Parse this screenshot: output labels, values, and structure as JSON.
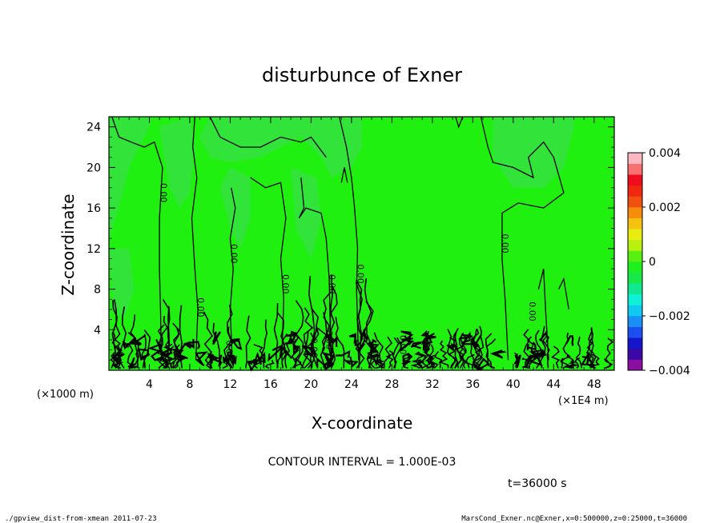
{
  "chart_data": {
    "type": "heatmap",
    "title": "disturbunce of Exner",
    "xlabel": "X-coordinate",
    "ylabel": "Z-coordinate",
    "x_unit_left": "(×1000 m)",
    "x_unit_right": "(×1E4 m)",
    "x_ticks": [
      "4",
      "8",
      "12",
      "16",
      "20",
      "24",
      "28",
      "32",
      "36",
      "40",
      "44",
      "48"
    ],
    "x_tick_values": [
      4,
      8,
      12,
      16,
      20,
      24,
      28,
      32,
      36,
      40,
      44,
      48
    ],
    "y_ticks": [
      "4",
      "8",
      "12",
      "16",
      "20",
      "24"
    ],
    "y_tick_values": [
      4,
      8,
      12,
      16,
      20,
      24
    ],
    "xlim": [
      0,
      50
    ],
    "ylim": [
      0,
      25
    ],
    "contour_interval_text": "CONTOUR INTERVAL = 1.000E-03",
    "time_text": "t=36000 s",
    "contour_labels": [
      {
        "x": 5.1,
        "z": 17.5,
        "text": "0.00"
      },
      {
        "x": 12.1,
        "z": 11.5,
        "text": "0.00"
      },
      {
        "x": 17.2,
        "z": 8.5,
        "text": "0.00"
      },
      {
        "x": 8.8,
        "z": 6.2,
        "text": "0.00"
      },
      {
        "x": 21.8,
        "z": 8.5,
        "text": "0.00"
      },
      {
        "x": 24.6,
        "z": 9.5,
        "text": "0.00"
      },
      {
        "x": 38.9,
        "z": 12.5,
        "text": "0.00"
      },
      {
        "x": 41.6,
        "z": 5.8,
        "text": "0.00"
      },
      {
        "x": 11.6,
        "z": 2.0,
        "text": "0.00"
      },
      {
        "x": 21.5,
        "z": 3.0,
        "text": "0.00"
      },
      {
        "x": 20.0,
        "z": 2.2,
        "text": "0.00"
      },
      {
        "x": 28.8,
        "z": 2.5,
        "text": "0.00"
      }
    ],
    "colorbar": {
      "labels": [
        "0.004",
        "0.002",
        "0",
        "−0.002",
        "−0.004"
      ],
      "label_values": [
        0.004,
        0.002,
        0,
        -0.002,
        -0.004
      ],
      "range": [
        -0.004,
        0.004
      ],
      "colors": [
        "#8a0fa0",
        "#3b08a8",
        "#1515cc",
        "#1c4ff0",
        "#1a8ff5",
        "#10c8f0",
        "#0ff0d8",
        "#0fe890",
        "#19e84a",
        "#1ef01e",
        "#58f010",
        "#b8f010",
        "#e8ec10",
        "#f5c010",
        "#f58c0a",
        "#f05010",
        "#f02810",
        "#f00c1c",
        "#f87070",
        "#fcb8c0"
      ]
    },
    "field_colors": {
      "main": "#20f010",
      "lower": "#32e43a"
    }
  },
  "footer": {
    "left": "./gpview_dist-from-xmean  2011-07-23",
    "right": "MarsCond_Exner.nc@Exner,x=0:500000,z=0:25000,t=36000"
  }
}
